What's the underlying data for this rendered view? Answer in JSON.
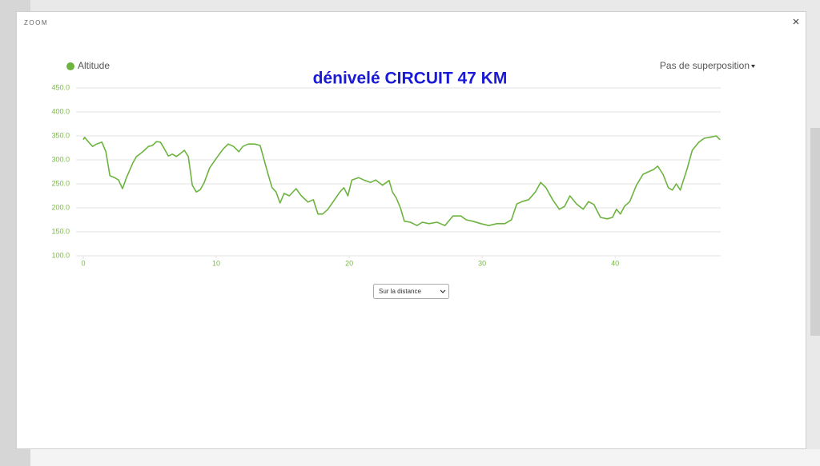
{
  "modal": {
    "header": "ZOOM",
    "overlay_option": "Pas de superposition",
    "axis_select": "Sur la distance"
  },
  "chart_data": {
    "type": "line",
    "title": "dénivelé CIRCUIT 47 KM",
    "series": [
      {
        "name": "Altitude",
        "color": "#6db33f",
        "x": [
          0,
          0.1,
          0.4,
          0.7,
          1.0,
          1.4,
          1.7,
          2.0,
          2.35,
          2.65,
          2.95,
          3.25,
          3.7,
          4.0,
          4.3,
          4.6,
          4.9,
          5.2,
          5.5,
          5.8,
          6.1,
          6.4,
          6.7,
          7.0,
          7.3,
          7.6,
          7.9,
          8.2,
          8.5,
          8.8,
          9.1,
          9.5,
          10,
          10.5,
          10.9,
          11.3,
          11.7,
          12.0,
          12.4,
          12.9,
          13.3,
          13.6,
          13.9,
          14.2,
          14.5,
          14.8,
          15.1,
          15.5,
          16.0,
          16.4,
          16.9,
          17.3,
          17.65,
          18.0,
          18.4,
          18.9,
          19.3,
          19.6,
          19.9,
          20.2,
          20.7,
          21.1,
          21.6,
          22.0,
          22.5,
          23.0,
          23.25,
          23.55,
          23.85,
          24.15,
          24.6,
          25.1,
          25.5,
          26.0,
          26.6,
          27.2,
          27.8,
          28.4,
          28.8,
          29.3,
          29.9,
          30.5,
          31.1,
          31.7,
          32.2,
          32.6,
          33.0,
          33.5,
          34.0,
          34.4,
          34.8,
          35.3,
          35.8,
          36.2,
          36.6,
          37.1,
          37.6,
          38.0,
          38.4,
          38.9,
          39.4,
          39.8,
          40.1,
          40.4,
          40.7,
          41.1,
          41.6,
          42.1,
          42.5,
          42.9,
          43.2,
          43.6,
          44.0,
          44.3,
          44.6,
          44.9,
          45.4,
          45.8,
          46.3,
          46.7,
          47.3,
          47.6,
          47.9
        ],
        "values": [
          342,
          347,
          337,
          328,
          333,
          337,
          317,
          267,
          263,
          258,
          240,
          263,
          292,
          307,
          313,
          320,
          328,
          330,
          338,
          337,
          323,
          308,
          312,
          307,
          313,
          320,
          307,
          247,
          233,
          238,
          253,
          283,
          303,
          322,
          333,
          328,
          317,
          328,
          333,
          333,
          330,
          300,
          270,
          242,
          233,
          210,
          230,
          225,
          240,
          225,
          212,
          217,
          187,
          187,
          197,
          217,
          233,
          242,
          225,
          258,
          263,
          258,
          253,
          258,
          247,
          257,
          233,
          220,
          200,
          172,
          170,
          163,
          170,
          167,
          170,
          163,
          183,
          183,
          175,
          172,
          167,
          163,
          167,
          167,
          175,
          208,
          213,
          217,
          233,
          253,
          242,
          217,
          197,
          203,
          225,
          208,
          197,
          213,
          207,
          180,
          177,
          180,
          197,
          187,
          203,
          213,
          247,
          270,
          275,
          280,
          287,
          270,
          242,
          237,
          250,
          237,
          280,
          320,
          337,
          345,
          348,
          350,
          342
        ]
      }
    ],
    "xlim": [
      0,
      48
    ],
    "xticks": [
      0,
      10,
      20,
      30,
      40
    ],
    "ylim": [
      100,
      450
    ],
    "yticks": [
      {
        "value": 100,
        "label": "100.0"
      },
      {
        "value": 150,
        "label": "150.0"
      },
      {
        "value": 200,
        "label": "200.0"
      },
      {
        "value": 250,
        "label": "250.0"
      },
      {
        "value": 300,
        "label": "300.0"
      },
      {
        "value": 350,
        "label": "350.0"
      },
      {
        "value": 400,
        "label": "400.0"
      },
      {
        "value": 450,
        "label": "450.0"
      }
    ],
    "grid": true,
    "legend": "top-left"
  }
}
